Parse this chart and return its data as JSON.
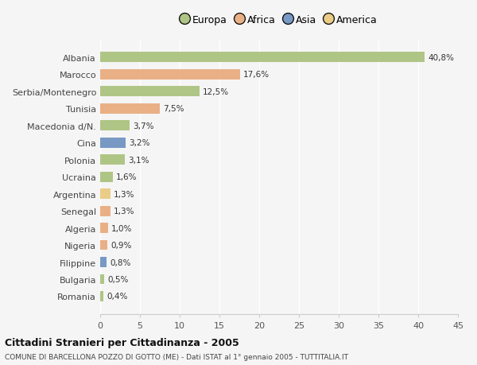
{
  "categories": [
    "Albania",
    "Marocco",
    "Serbia/Montenegro",
    "Tunisia",
    "Macedonia d/N.",
    "Cina",
    "Polonia",
    "Ucraina",
    "Argentina",
    "Senegal",
    "Algeria",
    "Nigeria",
    "Filippine",
    "Bulgaria",
    "Romania"
  ],
  "values": [
    40.8,
    17.6,
    12.5,
    7.5,
    3.7,
    3.2,
    3.1,
    1.6,
    1.3,
    1.3,
    1.0,
    0.9,
    0.8,
    0.5,
    0.4
  ],
  "labels": [
    "40,8%",
    "17,6%",
    "12,5%",
    "7,5%",
    "3,7%",
    "3,2%",
    "3,1%",
    "1,6%",
    "1,3%",
    "1,3%",
    "1,0%",
    "0,9%",
    "0,8%",
    "0,5%",
    "0,4%"
  ],
  "colors": [
    "#a8c07a",
    "#e8a97a",
    "#a8c07a",
    "#e8a97a",
    "#a8c07a",
    "#6b8fbf",
    "#a8c07a",
    "#a8c07a",
    "#e8c87a",
    "#e8a97a",
    "#e8a97a",
    "#e8a97a",
    "#6b8fbf",
    "#a8c07a",
    "#a8c07a"
  ],
  "legend_labels": [
    "Europa",
    "Africa",
    "Asia",
    "America"
  ],
  "legend_colors": [
    "#a8c07a",
    "#e8a97a",
    "#6b8fbf",
    "#e8c87a"
  ],
  "title": "Cittadini Stranieri per Cittadinanza - 2005",
  "subtitle": "COMUNE DI BARCELLONA POZZO DI GOTTO (ME) - Dati ISTAT al 1° gennaio 2005 - TUTTITALIA.IT",
  "xlim": [
    0,
    45
  ],
  "xticks": [
    0,
    5,
    10,
    15,
    20,
    25,
    30,
    35,
    40,
    45
  ],
  "bg_color": "#f5f5f5",
  "grid_color": "#ffffff",
  "bar_height": 0.6
}
